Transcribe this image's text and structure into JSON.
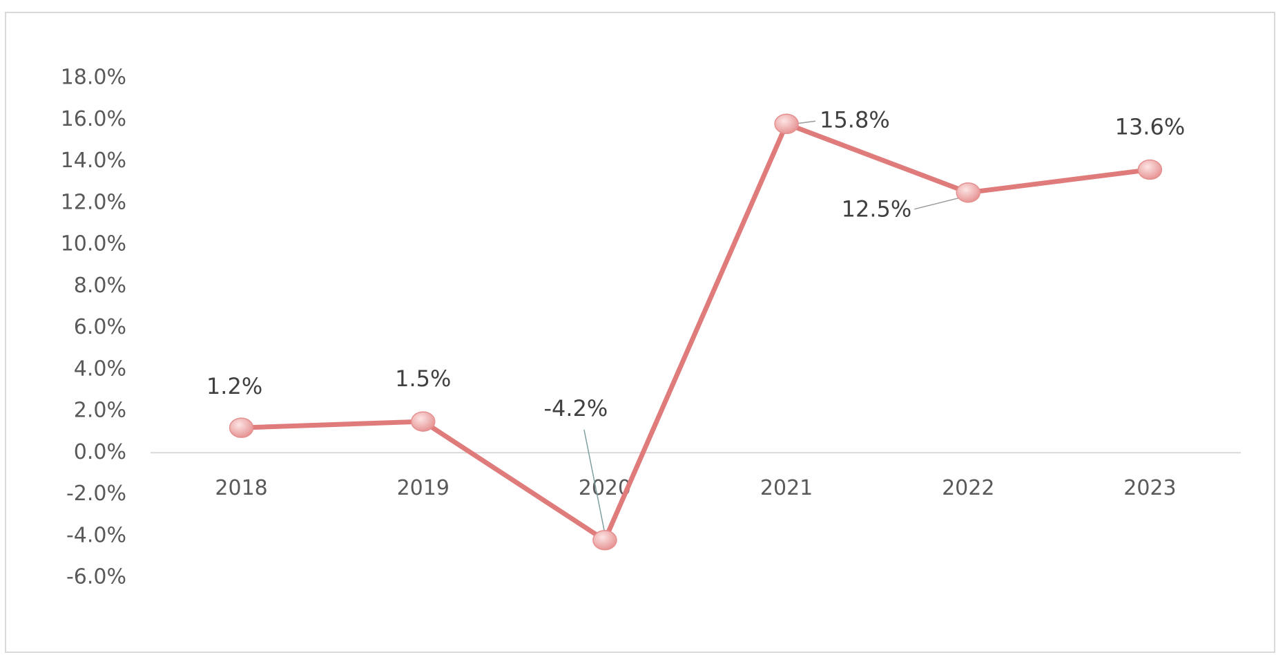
{
  "chart_data": {
    "type": "line",
    "categories": [
      "2018",
      "2019",
      "2020",
      "2021",
      "2022",
      "2023"
    ],
    "values": [
      1.2,
      1.5,
      -4.2,
      15.8,
      12.5,
      13.6
    ],
    "value_labels": [
      "1.2%",
      "1.5%",
      "-4.2%",
      "15.8%",
      "12.5%",
      "13.6%"
    ],
    "color": "#e07b7b",
    "ylim": [
      -6,
      18
    ],
    "yticks": [
      {
        "value": -6,
        "label": "-6.0%"
      },
      {
        "value": -4,
        "label": "-4.0%"
      },
      {
        "value": -2,
        "label": "-2.0%"
      },
      {
        "value": 0,
        "label": "0.0%"
      },
      {
        "value": 2,
        "label": "2.0%"
      },
      {
        "value": 4,
        "label": "4.0%"
      },
      {
        "value": 6,
        "label": "6.0%"
      },
      {
        "value": 8,
        "label": "8.0%"
      },
      {
        "value": 10,
        "label": "10.0%"
      },
      {
        "value": 12,
        "label": "12.0%"
      },
      {
        "value": 14,
        "label": "14.0%"
      },
      {
        "value": 16,
        "label": "16.0%"
      },
      {
        "value": 18,
        "label": "18.0%"
      }
    ],
    "grid": false
  }
}
